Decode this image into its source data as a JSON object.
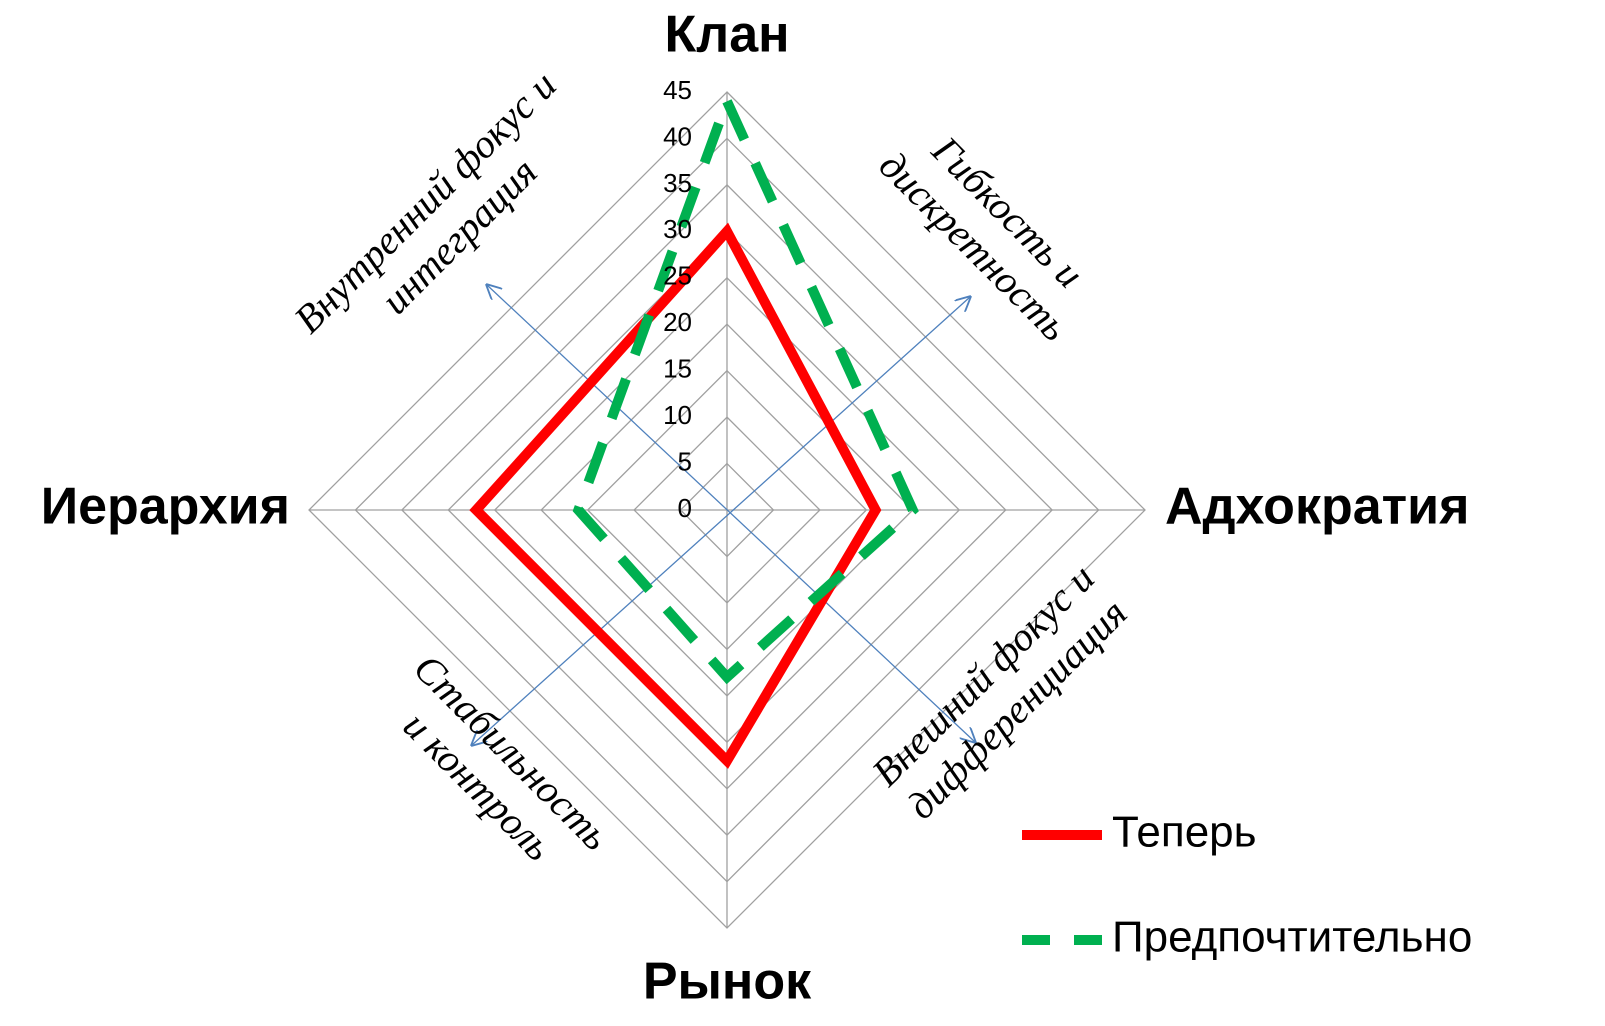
{
  "chart_data": {
    "type": "radar",
    "categories": [
      "Клан",
      "Адхократия",
      "Рынок",
      "Иерархия"
    ],
    "series": [
      {
        "name": "Теперь",
        "color": "#ff0000",
        "dash": false,
        "values": [
          30,
          16,
          27,
          27
        ]
      },
      {
        "name": "Предпочтительно",
        "color": "#00b050",
        "dash": true,
        "values": [
          44,
          20,
          18,
          16
        ]
      }
    ],
    "ylim": [
      0,
      45
    ],
    "yticks": [
      0,
      5,
      10,
      15,
      20,
      25,
      30,
      35,
      40,
      45
    ],
    "grid": true,
    "legend": "lower right",
    "annotations": [
      {
        "lines": [
          "Внутренний фокус и",
          "интеграция"
        ]
      },
      {
        "lines": [
          "Гибкость и",
          "дискретность"
        ]
      },
      {
        "lines": [
          "Внешний фокус и",
          "дифференциация"
        ]
      },
      {
        "lines": [
          "Стабильность",
          "и контроль"
        ]
      }
    ]
  }
}
